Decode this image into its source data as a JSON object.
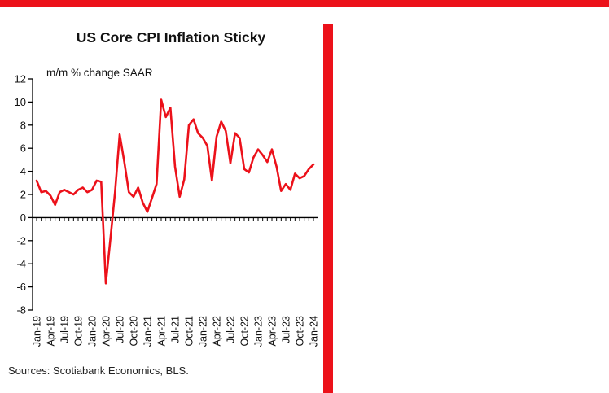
{
  "colors": {
    "accent_red": "#EC111A",
    "line_red": "#EC111A",
    "axis_black": "#000000"
  },
  "chart_data": {
    "type": "line",
    "title": "US Core CPI Inflation Sticky",
    "subtitle": "m/m % change SAAR",
    "source": "Sources: Scotiabank Economics, BLS.",
    "legend": [],
    "grid": false,
    "ylim": [
      -8,
      12
    ],
    "ytick_step": 2,
    "x_start": "Jan-19",
    "x_frequency": "monthly",
    "x_tick_labels": [
      "Jan-19",
      "Apr-19",
      "Jul-19",
      "Oct-19",
      "Jan-20",
      "Apr-20",
      "Jul-20",
      "Oct-20",
      "Jan-21",
      "Apr-21",
      "Jul-21",
      "Oct-21",
      "Jan-22",
      "Apr-22",
      "Jul-22",
      "Oct-22",
      "Jan-23",
      "Apr-23",
      "Jul-23",
      "Oct-23",
      "Jan-24"
    ],
    "x_tick_label_every_n_months": 3,
    "line_color": "#EC111A",
    "values": [
      3.2,
      2.2,
      2.3,
      1.9,
      1.1,
      2.2,
      2.4,
      2.2,
      2.0,
      2.4,
      2.6,
      2.2,
      2.4,
      3.2,
      3.1,
      -5.7,
      -1.8,
      2.2,
      7.2,
      4.8,
      2.2,
      1.8,
      2.6,
      1.3,
      0.5,
      1.7,
      2.9,
      10.2,
      8.7,
      9.5,
      4.4,
      1.8,
      3.3,
      8.0,
      8.5,
      7.3,
      6.9,
      6.2,
      3.2,
      7.0,
      8.3,
      7.5,
      4.7,
      7.3,
      6.9,
      4.2,
      3.9,
      5.2,
      5.9,
      5.4,
      4.8,
      5.9,
      4.4,
      2.3,
      2.9,
      2.4,
      3.8,
      3.4,
      3.6,
      4.2,
      4.6
    ]
  }
}
